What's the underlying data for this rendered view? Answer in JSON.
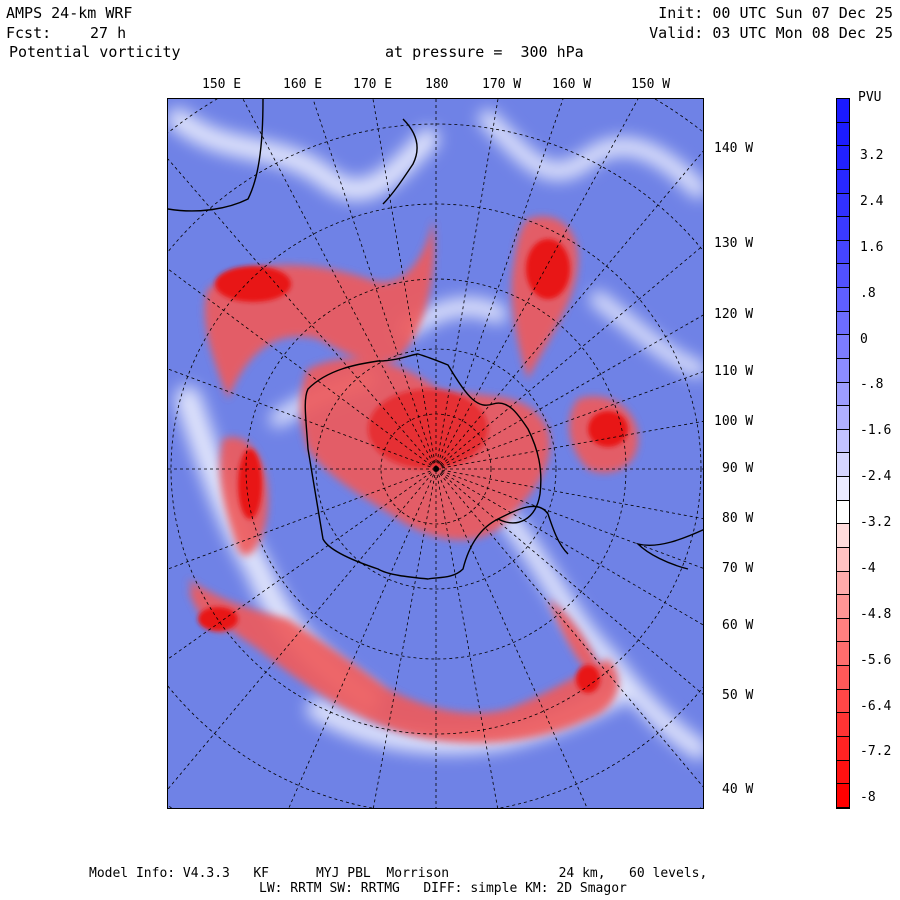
{
  "header": {
    "model": "AMPS 24-km WRF",
    "forecast_label": "Fcst:",
    "forecast_value": "27 h",
    "field": "Potential vorticity",
    "level_text": "at pressure =  300 hPa",
    "init": "Init: 00 UTC Sun 07 Dec 25",
    "valid": "Valid: 03 UTC Mon 08 Dec 25"
  },
  "map": {
    "top_longitudes": [
      "150 E",
      "160 E",
      "170 E",
      "180",
      "170 W",
      "160 W",
      "150 W"
    ],
    "right_longitudes": [
      "140 W",
      "130 W",
      "120 W",
      "110 W",
      "100 W",
      "90 W",
      "80 W",
      "70 W",
      "60 W",
      "50 W",
      "40 W"
    ]
  },
  "legend": {
    "units": "PVU",
    "labels": [
      "3.2",
      "2.4",
      "1.6",
      ".8",
      "0",
      "-.8",
      "-1.6",
      "-2.4",
      "-3.2",
      "-4",
      "-4.8",
      "-5.6",
      "-6.4",
      "-7.2",
      "-8"
    ],
    "min": -8,
    "max": 4,
    "steps": 30,
    "color_positive": "#1a1aff",
    "color_zero": "#ffffff",
    "color_negative": "#ff0000"
  },
  "footer": {
    "line1": "Model Info: V4.3.3   KF      MYJ PBL  Morrison              24 km,   60 levels,",
    "line2": "LW: RRTM SW: RRTMG   DIFF: simple KM: 2D Smagor"
  }
}
